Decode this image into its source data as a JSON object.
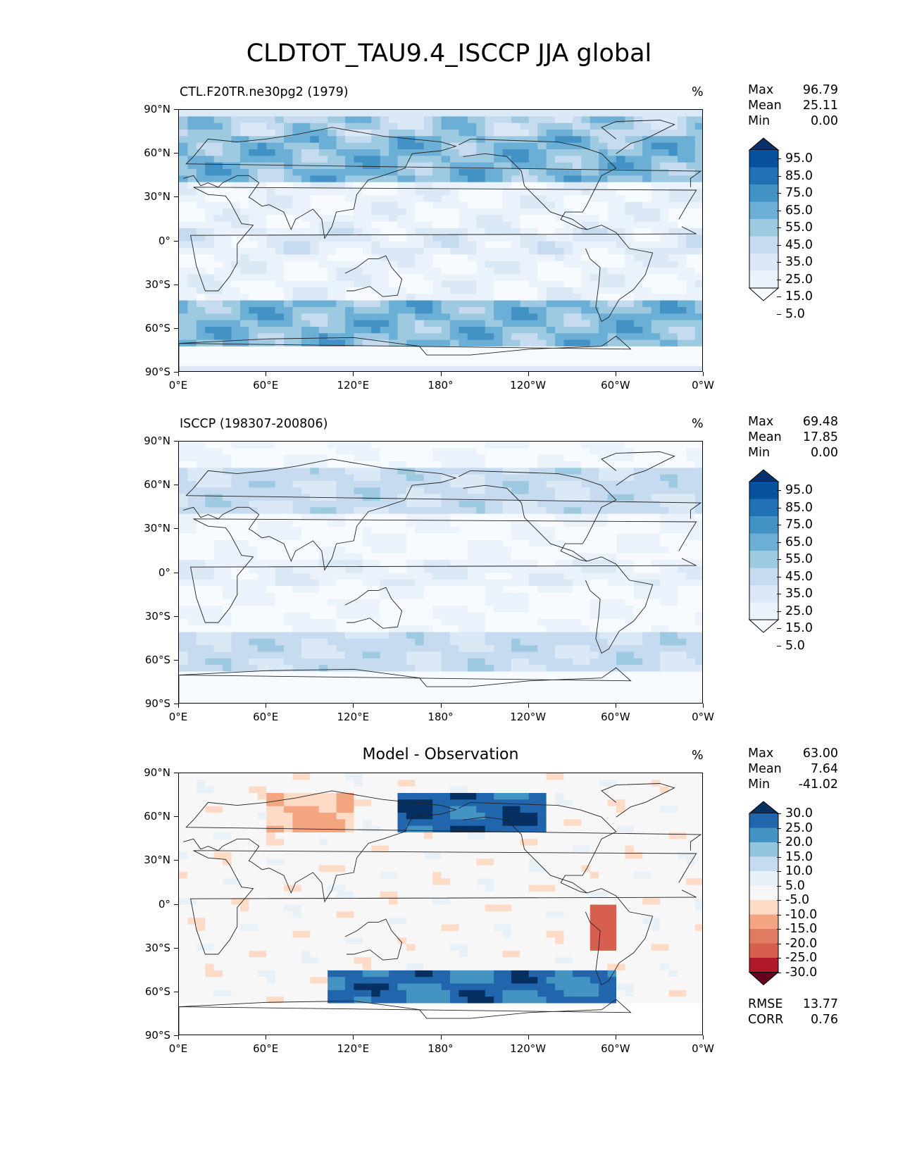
{
  "page_title": "CLDTOT_TAU9.4_ISCCP JJA global",
  "chart_data": [
    {
      "type": "heatmap",
      "id": "model",
      "title_left": "CTL.F20TR.ne30pg2 (1979)",
      "title_center": "",
      "units": "%",
      "stats": {
        "max_label": "Max",
        "max": "96.79",
        "mean_label": "Mean",
        "mean": "25.11",
        "min_label": "Min",
        "min": "0.00"
      },
      "yticks": [
        "90°N",
        "60°N",
        "30°N",
        "0°",
        "30°S",
        "60°S",
        "90°S"
      ],
      "xticks": [
        "0°E",
        "60°E",
        "120°E",
        "180°",
        "120°W",
        "60°W",
        "0°W"
      ],
      "colorbar_labels": [
        "95.0",
        "85.0",
        "75.0",
        "65.0",
        "55.0",
        "45.0",
        "35.0",
        "25.0",
        "15.0",
        "5.0"
      ],
      "colorbar_colors": [
        "#08306b",
        "#08519c",
        "#2171b5",
        "#4292c6",
        "#6baed6",
        "#9ecae1",
        "#c6dbef",
        "#dbe9f6",
        "#eaf2fb",
        "#f7fbff"
      ],
      "lat_range": [
        -90,
        90
      ],
      "lon_range": [
        0,
        360
      ]
    },
    {
      "type": "heatmap",
      "id": "obs",
      "title_left": "ISCCP (198307-200806)",
      "title_center": "",
      "units": "%",
      "stats": {
        "max_label": "Max",
        "max": "69.48",
        "mean_label": "Mean",
        "mean": "17.85",
        "min_label": "Min",
        "min": "0.00"
      },
      "yticks": [
        "90°N",
        "60°N",
        "30°N",
        "0°",
        "30°S",
        "60°S",
        "90°S"
      ],
      "xticks": [
        "0°E",
        "60°E",
        "120°E",
        "180°",
        "120°W",
        "60°W",
        "0°W"
      ],
      "colorbar_labels": [
        "95.0",
        "85.0",
        "75.0",
        "65.0",
        "55.0",
        "45.0",
        "35.0",
        "25.0",
        "15.0",
        "5.0"
      ],
      "colorbar_colors": [
        "#08306b",
        "#08519c",
        "#2171b5",
        "#4292c6",
        "#6baed6",
        "#9ecae1",
        "#c6dbef",
        "#dbe9f6",
        "#eaf2fb",
        "#f7fbff"
      ],
      "lat_range": [
        -90,
        90
      ],
      "lon_range": [
        0,
        360
      ]
    },
    {
      "type": "heatmap",
      "id": "diff",
      "title_left": "",
      "title_center": "Model - Observation",
      "units": "%",
      "stats": {
        "max_label": "Max",
        "max": "63.00",
        "mean_label": "Mean",
        "mean": "7.64",
        "min_label": "Min",
        "min": "-41.02"
      },
      "yticks": [
        "90°N",
        "60°N",
        "30°N",
        "0°",
        "30°S",
        "60°S",
        "90°S"
      ],
      "xticks": [
        "0°E",
        "60°E",
        "120°E",
        "180°",
        "120°W",
        "60°W",
        "0°W"
      ],
      "colorbar_labels": [
        "30.0",
        "25.0",
        "20.0",
        "15.0",
        "10.0",
        "5.0",
        "-5.0",
        "-10.0",
        "-15.0",
        "-20.0",
        "-25.0",
        "-30.0"
      ],
      "colorbar_colors": [
        "#053061",
        "#2166ac",
        "#4393c3",
        "#92c5de",
        "#c6dbef",
        "#e8f1f8",
        "#f7f7f7",
        "#fddbc7",
        "#f4a582",
        "#e07b62",
        "#d6604d",
        "#b2182b",
        "#67001f"
      ],
      "lat_range": [
        -90,
        90
      ],
      "lon_range": [
        0,
        360
      ],
      "footer": {
        "rmse_label": "RMSE",
        "rmse": "13.77",
        "corr_label": "CORR",
        "corr": "0.76"
      }
    }
  ]
}
